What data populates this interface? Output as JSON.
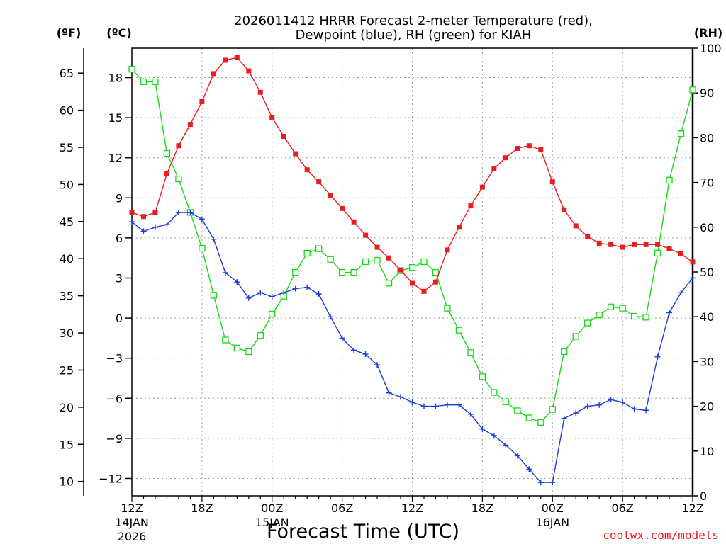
{
  "chart_data": {
    "type": "line",
    "title_line1": "2026011412 HRRR Forecast 2-meter Temperature (red),",
    "title_line2": "Dewpoint (blue), RH (green) for KIAH",
    "xlabel": "Forecast Time (UTC)",
    "credit": "coolwx.com/models",
    "unit_f": "(ºF)",
    "unit_c": "(ºC)",
    "unit_rh": "(RH)",
    "grid": true,
    "forecast_hour_range": [
      0,
      48
    ],
    "left_axis_c_range": [
      -13.3,
      20.2
    ],
    "right_axis_rh_range": [
      0,
      100
    ],
    "x_ticks": [
      {
        "hour": 0,
        "l1": "12Z",
        "l2": "14JAN",
        "l3": "2026"
      },
      {
        "hour": 6,
        "l1": "18Z",
        "l2": "",
        "l3": ""
      },
      {
        "hour": 12,
        "l1": "00Z",
        "l2": "15JAN",
        "l3": ""
      },
      {
        "hour": 18,
        "l1": "06Z",
        "l2": "",
        "l3": ""
      },
      {
        "hour": 24,
        "l1": "12Z",
        "l2": "",
        "l3": ""
      },
      {
        "hour": 30,
        "l1": "18Z",
        "l2": "",
        "l3": ""
      },
      {
        "hour": 36,
        "l1": "00Z",
        "l2": "16JAN",
        "l3": ""
      },
      {
        "hour": 42,
        "l1": "06Z",
        "l2": "",
        "l3": ""
      },
      {
        "hour": 48,
        "l1": "12Z",
        "l2": "",
        "l3": ""
      }
    ],
    "c_ticks": [
      18,
      15,
      12,
      9,
      6,
      3,
      0,
      -3,
      -6,
      -9,
      -12
    ],
    "c_tick_labels": [
      "18",
      "15",
      "12",
      "9",
      "6",
      "3",
      "0",
      "−3",
      "−6",
      "−9",
      "−12"
    ],
    "f_ticks": [
      65,
      60,
      55,
      50,
      45,
      40,
      35,
      30,
      25,
      20,
      15,
      10
    ],
    "rh_ticks": [
      100,
      90,
      80,
      70,
      60,
      50,
      40,
      30,
      20,
      10,
      0
    ],
    "colors": {
      "temperature": "#e81e1e",
      "dewpoint": "#1e3cdc",
      "rh": "#14dc14",
      "credit": "#e81e1e",
      "grid": "#a0a0a0"
    },
    "series": [
      {
        "name": "Temperature",
        "unit": "°C",
        "marker": "filled-square",
        "values": [
          7.9,
          7.6,
          7.9,
          10.8,
          12.9,
          14.5,
          16.2,
          18.3,
          19.3,
          19.5,
          18.5,
          16.9,
          15.0,
          13.6,
          12.3,
          11.1,
          10.2,
          9.2,
          8.2,
          7.2,
          6.2,
          5.3,
          4.5,
          3.6,
          2.6,
          2.0,
          2.7,
          5.1,
          6.8,
          8.4,
          9.8,
          11.2,
          12.0,
          12.7,
          12.9,
          12.6,
          10.2,
          8.1,
          6.9,
          6.1,
          5.6,
          5.5,
          5.3,
          5.5,
          5.5,
          5.5,
          5.2,
          4.8,
          4.2
        ]
      },
      {
        "name": "Dewpoint",
        "unit": "°C",
        "marker": "plus",
        "values": [
          7.2,
          6.5,
          6.8,
          7.0,
          7.9,
          7.9,
          7.4,
          5.9,
          3.4,
          2.7,
          1.5,
          1.9,
          1.6,
          1.9,
          2.2,
          2.3,
          1.8,
          0.1,
          -1.5,
          -2.4,
          -2.7,
          -3.5,
          -5.6,
          -5.9,
          -6.3,
          -6.6,
          -6.6,
          -6.5,
          -6.5,
          -7.2,
          -8.3,
          -8.8,
          -9.5,
          -10.3,
          -11.3,
          -12.3,
          -12.3,
          -7.5,
          -7.1,
          -6.6,
          -6.5,
          -6.1,
          -6.3,
          -6.8,
          -6.9,
          -2.9,
          0.4,
          1.9,
          3.0
        ]
      },
      {
        "name": "RH",
        "unit": "%",
        "marker": "open-square",
        "values": [
          95.3,
          92.5,
          92.5,
          76.5,
          70.8,
          63.3,
          55.3,
          44.8,
          34.8,
          33.0,
          32.2,
          35.8,
          40.6,
          44.6,
          49.9,
          54.2,
          55.2,
          52.8,
          49.9,
          49.9,
          52.3,
          52.6,
          47.5,
          50.3,
          51.0,
          52.3,
          49.9,
          41.9,
          37.0,
          32.0,
          26.6,
          23.1,
          21.0,
          19.0,
          17.4,
          16.4,
          19.3,
          32.2,
          35.6,
          38.6,
          40.4,
          42.2,
          41.9,
          40.1,
          39.9,
          54.2,
          70.5,
          80.9,
          90.7
        ]
      }
    ]
  }
}
